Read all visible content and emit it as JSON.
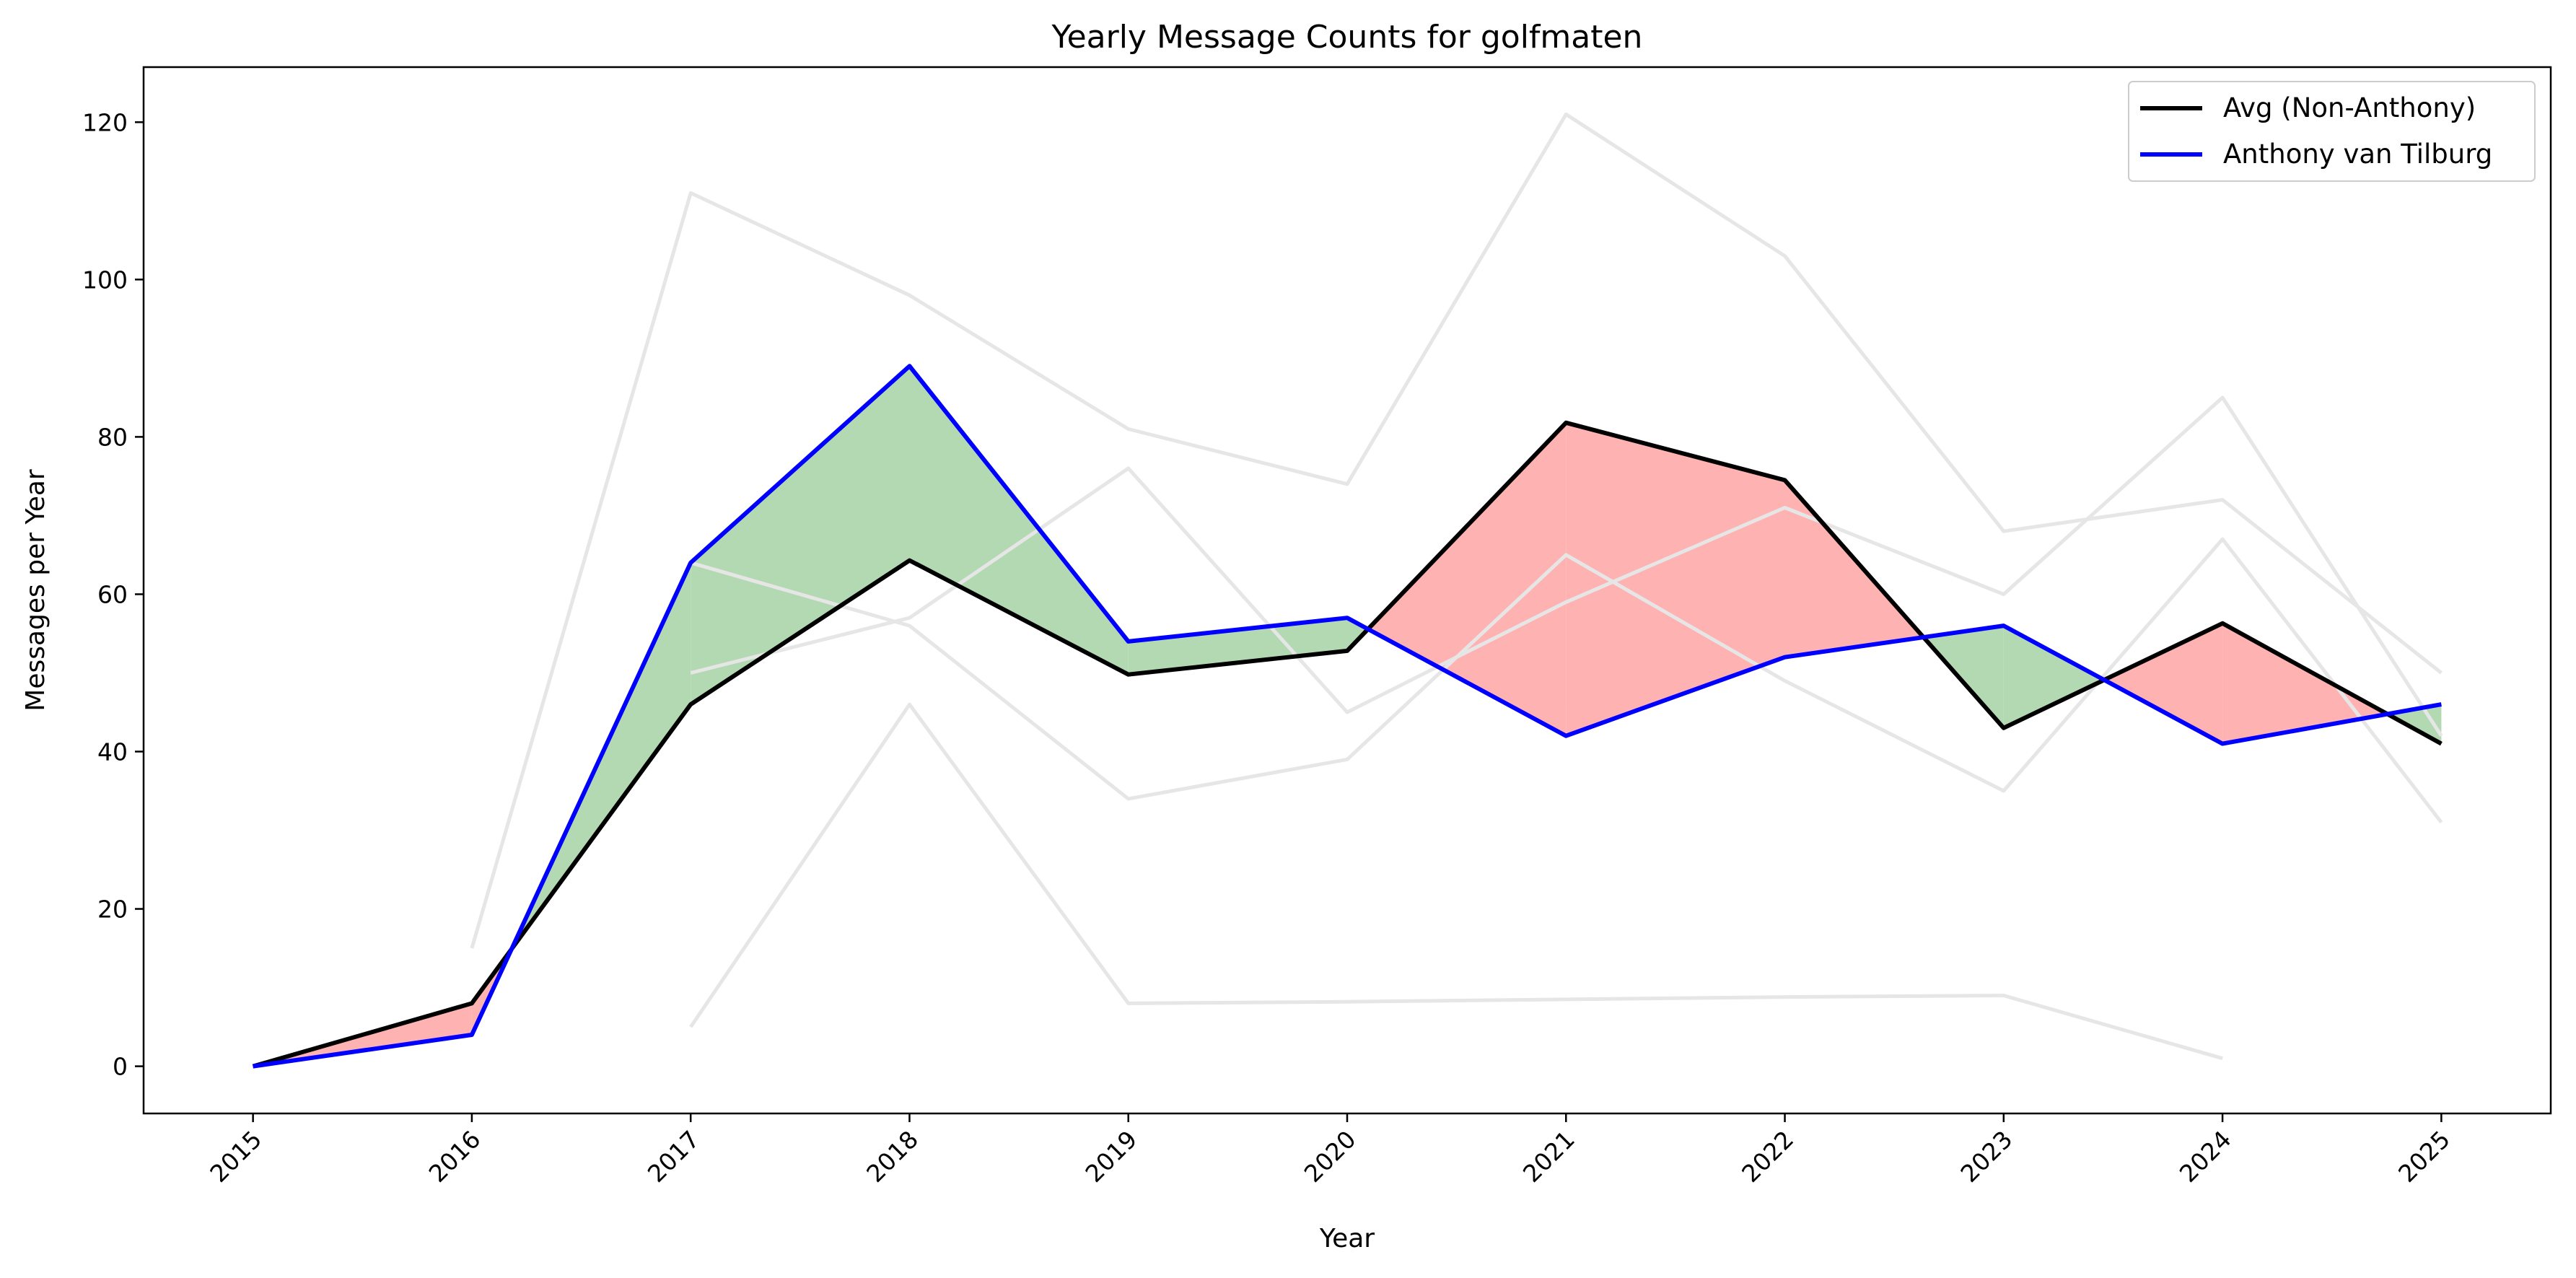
{
  "chart_data": {
    "type": "line",
    "title": "Yearly Message Counts for golfmaten",
    "xlabel": "Year",
    "ylabel": "Messages per Year",
    "x": [
      "2015",
      "2016",
      "2017",
      "2018",
      "2019",
      "2020",
      "2021",
      "2022",
      "2023",
      "2024",
      "2025"
    ],
    "y_ticks": [
      "0",
      "20",
      "40",
      "60",
      "80",
      "100",
      "120"
    ],
    "xlim": [
      2014.5,
      2025.5
    ],
    "ylim": [
      -6,
      127
    ],
    "grid": false,
    "legend_position": "top-right",
    "series": [
      {
        "name": "Avg (Non-Anthony)",
        "color": "#000000",
        "values": [
          0,
          8,
          46,
          64.3,
          49.8,
          52.8,
          81.8,
          74.5,
          43,
          56.3,
          41
        ]
      },
      {
        "name": "Anthony van Tilburg",
        "color": "#0000ff",
        "values": [
          0,
          4,
          64,
          89,
          54,
          57,
          42,
          52,
          56,
          41,
          46
        ]
      }
    ],
    "background_series": [
      {
        "color": "#e6e6e6",
        "values": [
          null,
          15,
          111,
          98,
          81,
          74,
          121,
          103,
          68,
          72,
          50
        ]
      },
      {
        "color": "#e6e6e6",
        "values": [
          null,
          null,
          64,
          56,
          34,
          39,
          65,
          49,
          35,
          67,
          31
        ]
      },
      {
        "color": "#e6e6e6",
        "values": [
          null,
          null,
          50,
          57,
          76,
          45,
          59,
          71,
          60,
          85,
          42
        ]
      },
      {
        "color": "#e6e6e6",
        "values": [
          null,
          null,
          5,
          46,
          8,
          8.2,
          8.5,
          8.8,
          9,
          1,
          null
        ]
      }
    ],
    "fill_colors": {
      "anthony_above": "#b2d9b2",
      "anthony_below": "#ffb2b2"
    }
  }
}
